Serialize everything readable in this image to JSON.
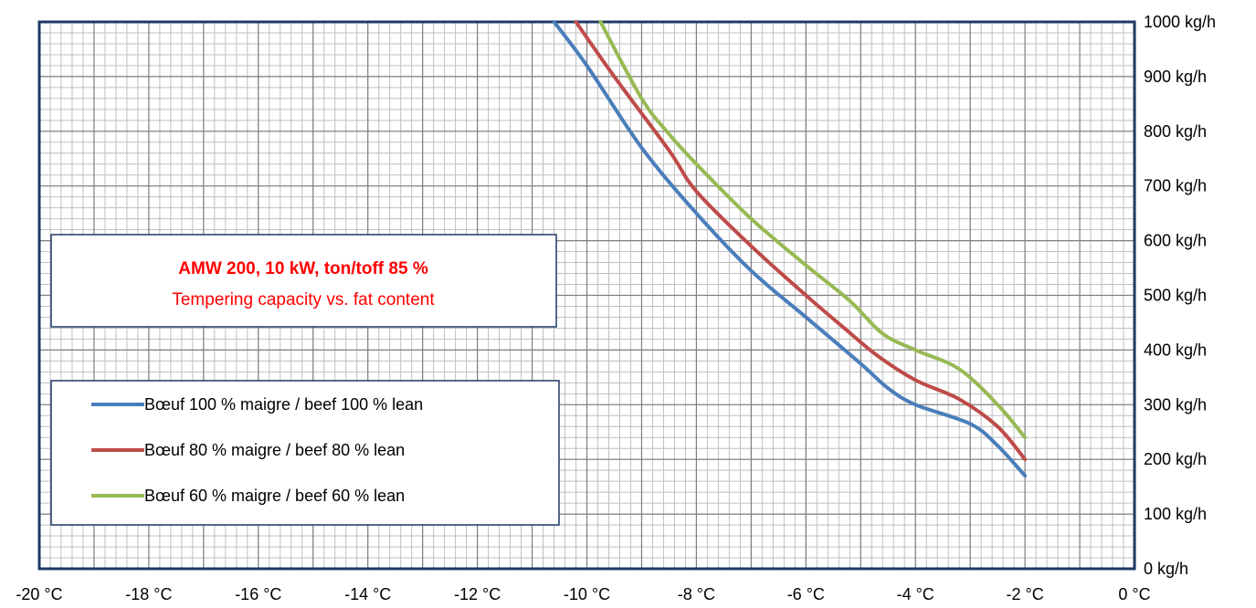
{
  "chart_data": {
    "type": "line",
    "title": "AMW 200, 10 kW, ton/toff 85 %",
    "subtitle": "Tempering capacity vs. fat content",
    "xlabel": "",
    "ylabel": "",
    "xlim": [
      -20,
      0
    ],
    "ylim": [
      0,
      1000
    ],
    "x_ticks": [
      "-20 °C",
      "-18 °C",
      "-16 °C",
      "-14 °C",
      "-12 °C",
      "-10 °C",
      "-8 °C",
      "-6 °C",
      "-4 °C",
      "-2 °C",
      "0 °C"
    ],
    "x_tick_values": [
      -20,
      -18,
      -16,
      -14,
      -12,
      -10,
      -8,
      -6,
      -4,
      -2,
      0
    ],
    "y_ticks": [
      "0 kg/h",
      "100 kg/h",
      "200 kg/h",
      "300 kg/h",
      "400 kg/h",
      "500 kg/h",
      "600 kg/h",
      "700 kg/h",
      "800 kg/h",
      "900 kg/h",
      "1000 kg/h"
    ],
    "y_tick_values": [
      0,
      100,
      200,
      300,
      400,
      500,
      600,
      700,
      800,
      900,
      1000
    ],
    "y_axis_side": "right",
    "grid": true,
    "legend_position": "bottom-left",
    "series": [
      {
        "name": "Bœuf 100 % maigre / beef 100 % lean",
        "color": "#4a7ebb",
        "points": [
          [
            -10.6,
            1000
          ],
          [
            -10,
            920
          ],
          [
            -9,
            770
          ],
          [
            -8,
            650
          ],
          [
            -7,
            545
          ],
          [
            -6,
            460
          ],
          [
            -5,
            375
          ],
          [
            -4.5,
            330
          ],
          [
            -4,
            300
          ],
          [
            -3,
            265
          ],
          [
            -2.5,
            225
          ],
          [
            -2,
            170
          ]
        ]
      },
      {
        "name": "Bœuf 80 % maigre /  beef 80 % lean",
        "color": "#be4b48",
        "points": [
          [
            -10.2,
            1000
          ],
          [
            -9.5,
            900
          ],
          [
            -8.5,
            765
          ],
          [
            -8,
            690
          ],
          [
            -7,
            590
          ],
          [
            -6,
            500
          ],
          [
            -5.3,
            440
          ],
          [
            -4.7,
            390
          ],
          [
            -4,
            345
          ],
          [
            -3.2,
            310
          ],
          [
            -2.5,
            260
          ],
          [
            -2,
            200
          ]
        ]
      },
      {
        "name": "Bœuf 60 % maigre / beef 60 % lean",
        "color": "#98b954",
        "points": [
          [
            -9.75,
            1000
          ],
          [
            -9,
            860
          ],
          [
            -8.5,
            795
          ],
          [
            -8,
            740
          ],
          [
            -7,
            640
          ],
          [
            -6,
            555
          ],
          [
            -5.2,
            490
          ],
          [
            -4.6,
            430
          ],
          [
            -4,
            400
          ],
          [
            -3.2,
            365
          ],
          [
            -2.5,
            300
          ],
          [
            -2,
            240
          ]
        ]
      }
    ]
  }
}
